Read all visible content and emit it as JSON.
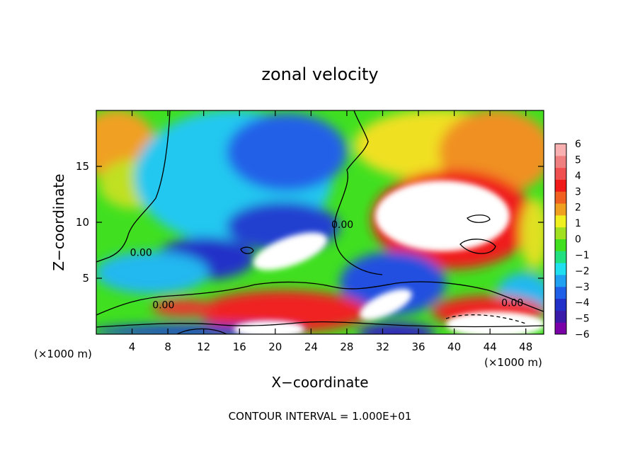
{
  "chart_data": {
    "type": "heatmap",
    "title": "zonal velocity",
    "xlabel": "X−coordinate",
    "ylabel": "Z−coordinate",
    "x_unit_note": "(×1000 m)",
    "x_unit_note_right": "(×1000 m)",
    "footer": "CONTOUR INTERVAL = 1.000E+01",
    "xlim": [
      0,
      50
    ],
    "ylim": [
      0,
      20
    ],
    "x_ticks": [
      4,
      8,
      12,
      16,
      20,
      24,
      28,
      32,
      36,
      40,
      44,
      48
    ],
    "y_ticks": [
      5,
      10,
      15
    ],
    "colorbar": {
      "min": -6,
      "max": 6,
      "ticks": [
        6,
        5,
        4,
        3,
        2,
        1,
        0,
        -1,
        -2,
        -3,
        -4,
        -5,
        -6
      ],
      "colors": [
        "#7a00a8",
        "#3a1aa8",
        "#2030c8",
        "#2060e8",
        "#20a0f0",
        "#20e0f0",
        "#20e080",
        "#40e020",
        "#a0e020",
        "#f0f020",
        "#f0a020",
        "#f06020",
        "#f01a1a",
        "#f05050",
        "#f08080",
        "#f8b0b0"
      ]
    },
    "contour_labels": [
      {
        "text": "0.00",
        "x": 5,
        "y": 7.0
      },
      {
        "text": "0.00",
        "x": 7.5,
        "y": 2.3
      },
      {
        "text": "0.00",
        "x": 27.5,
        "y": 9.5
      },
      {
        "text": "0.00",
        "x": 46.5,
        "y": 2.5
      }
    ]
  }
}
